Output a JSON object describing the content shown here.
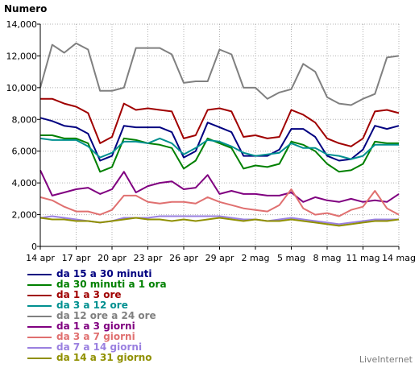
{
  "chart_data": {
    "type": "line",
    "ylabel": "Numero",
    "ylim": [
      0,
      14000
    ],
    "yticks": [
      "0",
      "2,000",
      "4,000",
      "6,000",
      "8,000",
      "10,000",
      "12,000",
      "14,000"
    ],
    "ytick_values": [
      0,
      2000,
      4000,
      6000,
      8000,
      10000,
      12000,
      14000
    ],
    "x_count": 31,
    "xtick_positions": [
      0,
      3,
      6,
      9,
      12,
      15,
      18,
      21,
      24,
      27,
      30
    ],
    "xticks": [
      "14 apr",
      "17 apr",
      "20 apr",
      "23 apr",
      "26 apr",
      "29 apr",
      "2 mag",
      "5 mag",
      "8 mag",
      "11 mag",
      "14 mag"
    ],
    "grid": true,
    "legend_position": "bottom",
    "series": [
      {
        "name": "da 15 a 30 minuti",
        "color": "#000080",
        "values": [
          8100,
          7900,
          7600,
          7500,
          7100,
          5400,
          5700,
          7600,
          7500,
          7500,
          7500,
          7200,
          5600,
          6000,
          7800,
          7500,
          7200,
          5700,
          5700,
          5700,
          6100,
          7400,
          7400,
          6900,
          5700,
          5400,
          5500,
          6100,
          7600,
          7400,
          7600
        ]
      },
      {
        "name": "da 30 minuti a 1 ora",
        "color": "#008000",
        "values": [
          7000,
          7000,
          6800,
          6800,
          6500,
          4700,
          5000,
          6800,
          6700,
          6500,
          6400,
          6200,
          4900,
          5400,
          6800,
          6500,
          6200,
          4900,
          5100,
          5000,
          5200,
          6600,
          6400,
          6000,
          5200,
          4700,
          4800,
          5200,
          6600,
          6500,
          6500
        ]
      },
      {
        "name": "da 1 a 3 ore",
        "color": "#a00000",
        "values": [
          9300,
          9300,
          9000,
          8800,
          8400,
          6500,
          6900,
          9000,
          8600,
          8700,
          8600,
          8500,
          6800,
          7000,
          8600,
          8700,
          8500,
          6900,
          7000,
          6800,
          6900,
          8600,
          8300,
          7800,
          6800,
          6500,
          6300,
          6800,
          8500,
          8600,
          8400
        ]
      },
      {
        "name": "da 3 a 12 ore",
        "color": "#009090",
        "values": [
          6800,
          6700,
          6700,
          6700,
          6300,
          5600,
          5900,
          6600,
          6600,
          6500,
          6800,
          6500,
          5800,
          6200,
          6700,
          6600,
          6300,
          5900,
          5700,
          5800,
          5900,
          6500,
          6200,
          6200,
          5800,
          5700,
          5500,
          5700,
          6400,
          6400,
          6400
        ]
      },
      {
        "name": "da 12 ore a 24 ore",
        "color": "#808080",
        "values": [
          10000,
          12700,
          12200,
          12800,
          12400,
          9800,
          9800,
          10000,
          12500,
          12500,
          12500,
          12100,
          10300,
          10400,
          10400,
          12400,
          12100,
          10000,
          10000,
          9300,
          9700,
          9900,
          11500,
          11000,
          9400,
          9000,
          8900,
          9300,
          9600,
          11900,
          12000
        ]
      },
      {
        "name": "da 1 a 3 giorni",
        "color": "#800080",
        "values": [
          4800,
          3200,
          3400,
          3600,
          3700,
          3300,
          3600,
          4700,
          3400,
          3800,
          4000,
          4100,
          3600,
          3700,
          4500,
          3300,
          3500,
          3300,
          3300,
          3200,
          3200,
          3400,
          2800,
          3100,
          2900,
          2800,
          3000,
          2800,
          2900,
          2800,
          3300
        ]
      },
      {
        "name": "da 3 a 7 giorni",
        "color": "#e07070",
        "values": [
          3100,
          2900,
          2500,
          2200,
          2200,
          2000,
          2300,
          3200,
          3200,
          2800,
          2700,
          2800,
          2800,
          2700,
          3100,
          2800,
          2600,
          2400,
          2300,
          2200,
          2600,
          3600,
          2400,
          2000,
          2100,
          1900,
          2300,
          2500,
          3500,
          2400,
          2000
        ]
      },
      {
        "name": "da 7 a 14 giorni",
        "color": "#9a80e0",
        "values": [
          1800,
          1900,
          1800,
          1700,
          1600,
          1500,
          1600,
          1800,
          1800,
          1800,
          1900,
          1900,
          1900,
          1900,
          1900,
          1900,
          1800,
          1700,
          1700,
          1600,
          1700,
          1800,
          1700,
          1600,
          1500,
          1400,
          1500,
          1600,
          1700,
          1700,
          1700
        ]
      },
      {
        "name": "da 14 a 31 giorno",
        "color": "#909000",
        "values": [
          1800,
          1700,
          1700,
          1600,
          1600,
          1500,
          1600,
          1700,
          1800,
          1700,
          1700,
          1600,
          1700,
          1600,
          1700,
          1800,
          1700,
          1600,
          1700,
          1600,
          1600,
          1700,
          1600,
          1500,
          1400,
          1300,
          1400,
          1500,
          1600,
          1600,
          1700
        ]
      }
    ]
  },
  "branding": "LiveInternet"
}
